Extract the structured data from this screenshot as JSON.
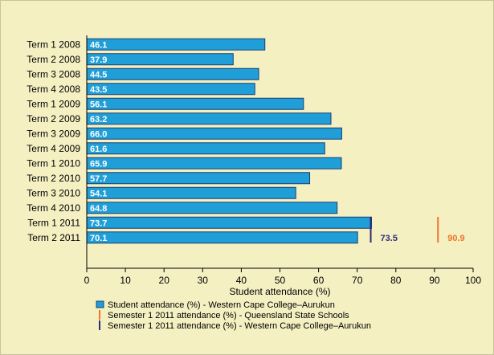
{
  "chart_data": {
    "type": "bar",
    "orientation": "horizontal",
    "categories": [
      "Term 1 2008",
      "Term 2 2008",
      "Term 3 2008",
      "Term 4 2008",
      "Term 1 2009",
      "Term 2 2009",
      "Term 3 2009",
      "Term 4 2009",
      "Term 1 2010",
      "Term 2 2010",
      "Term 3 2010",
      "Term 4 2010",
      "Term 1 2011",
      "Term 2 2011"
    ],
    "series": [
      {
        "name": "Student attendance (%) - Western Cape College–Aurukun",
        "values": [
          46.1,
          37.9,
          44.5,
          43.5,
          56.1,
          63.2,
          66.0,
          61.6,
          65.9,
          57.7,
          54.1,
          64.8,
          73.7,
          70.1
        ],
        "labels": [
          "46.1",
          "37.9",
          "44.5",
          "43.5",
          "56.1",
          "63.2",
          "66.0",
          "61.6",
          "65.9",
          "57.7",
          "54.1",
          "64.8",
          "73.7",
          "70.1"
        ],
        "color": "#1f9ed8"
      }
    ],
    "reference_lines": [
      {
        "name": "Semester 1 2011 attendance (%) - Queensland State Schools",
        "value": 90.9,
        "label": "90.9",
        "color": "#f0742a",
        "rows": [
          12,
          13
        ]
      },
      {
        "name": "Semester 1 2011 attendance (%) - Western Cape College–Aurukun",
        "value": 73.5,
        "label": "73.5",
        "color": "#2e2d7a",
        "rows": [
          12,
          13
        ]
      }
    ],
    "xlabel": "Student attendance (%)",
    "xlim": [
      0,
      100
    ],
    "xticks": [
      "0",
      "10",
      "20",
      "30",
      "40",
      "50",
      "60",
      "70",
      "80",
      "90",
      "100"
    ],
    "grid": false,
    "legend_position": "bottom"
  },
  "colors": {
    "background": "#f4f0c2",
    "bar": "#1f9ed8",
    "bar_border": "#1b3f73"
  }
}
